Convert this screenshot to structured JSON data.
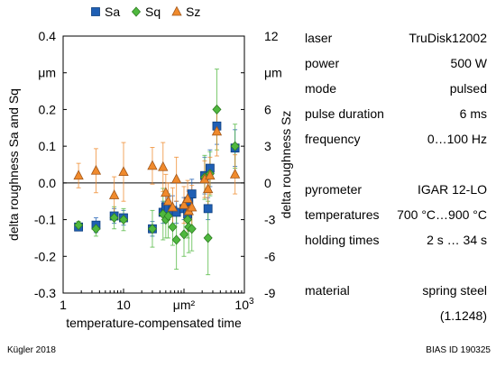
{
  "chart_data": {
    "type": "scatter",
    "x_scale": "log",
    "xlabel": "temperature-compensated time",
    "xlim": [
      1,
      1000
    ],
    "x_tick_labels": [
      "1",
      "10",
      "μm²",
      "10³"
    ],
    "ylabel_left": "delta roughness Sa and Sq",
    "ylim_left": [
      -0.3,
      0.4
    ],
    "y_ticks_left": [
      "0.4",
      "μm",
      "0.2",
      "0.1",
      "0.0",
      "-0.1",
      "-0.2",
      "-0.3"
    ],
    "ylabel_right": "delta roughness Sz",
    "ylim_right": [
      -9,
      12
    ],
    "y_ticks_right": [
      "12",
      "μm",
      "6",
      "3",
      "0",
      "-3",
      "-6",
      "-9"
    ],
    "legend_position": "top",
    "colors": {
      "Sa": "#1f5fb4",
      "Sq": "#4fb83e",
      "Sz": "#f08a2c",
      "Sa_edge": "#0d3f7f",
      "Sq_edge": "#2e7d22",
      "Sz_edge": "#a0561a"
    },
    "series": [
      {
        "name": "Sa",
        "axis": "left",
        "marker": "square",
        "points": [
          {
            "x": 1.8,
            "y": -0.12,
            "err": 0.01
          },
          {
            "x": 3.5,
            "y": -0.115,
            "err": 0.02
          },
          {
            "x": 7,
            "y": -0.09,
            "err": 0.02
          },
          {
            "x": 10,
            "y": -0.095,
            "err": 0.02
          },
          {
            "x": 30,
            "y": -0.125,
            "err": 0.02
          },
          {
            "x": 45,
            "y": -0.08,
            "err": 0.03
          },
          {
            "x": 50,
            "y": -0.065,
            "err": 0.03
          },
          {
            "x": 55,
            "y": -0.07,
            "err": 0.03
          },
          {
            "x": 65,
            "y": -0.075,
            "err": 0.04
          },
          {
            "x": 75,
            "y": -0.08,
            "err": 0.03
          },
          {
            "x": 100,
            "y": -0.07,
            "err": 0.03
          },
          {
            "x": 115,
            "y": -0.085,
            "err": 0.04
          },
          {
            "x": 120,
            "y": -0.05,
            "err": 0.03
          },
          {
            "x": 135,
            "y": -0.03,
            "err": 0.04
          },
          {
            "x": 220,
            "y": 0.02,
            "err": 0.05
          },
          {
            "x": 250,
            "y": -0.07,
            "err": 0.03
          },
          {
            "x": 270,
            "y": 0.04,
            "err": 0.05
          },
          {
            "x": 350,
            "y": 0.155,
            "err": 0.05
          },
          {
            "x": 700,
            "y": 0.095,
            "err": 0.05
          }
        ]
      },
      {
        "name": "Sq",
        "axis": "left",
        "marker": "diamond",
        "points": [
          {
            "x": 1.8,
            "y": -0.115,
            "err": 0.01
          },
          {
            "x": 3.5,
            "y": -0.125,
            "err": 0.02
          },
          {
            "x": 7,
            "y": -0.095,
            "err": 0.03
          },
          {
            "x": 10,
            "y": -0.1,
            "err": 0.03
          },
          {
            "x": 30,
            "y": -0.125,
            "err": 0.05
          },
          {
            "x": 45,
            "y": -0.085,
            "err": 0.07
          },
          {
            "x": 50,
            "y": -0.1,
            "err": 0.05
          },
          {
            "x": 55,
            "y": -0.09,
            "err": 0.06
          },
          {
            "x": 65,
            "y": -0.12,
            "err": 0.05
          },
          {
            "x": 75,
            "y": -0.155,
            "err": 0.08
          },
          {
            "x": 100,
            "y": -0.14,
            "err": 0.06
          },
          {
            "x": 115,
            "y": -0.1,
            "err": 0.05
          },
          {
            "x": 120,
            "y": -0.12,
            "err": 0.07
          },
          {
            "x": 135,
            "y": -0.125,
            "err": 0.06
          },
          {
            "x": 220,
            "y": 0.015,
            "err": 0.06
          },
          {
            "x": 250,
            "y": -0.15,
            "err": 0.1
          },
          {
            "x": 270,
            "y": 0.025,
            "err": 0.06
          },
          {
            "x": 350,
            "y": 0.2,
            "err": 0.11
          },
          {
            "x": 700,
            "y": 0.1,
            "err": 0.06
          }
        ]
      },
      {
        "name": "Sz",
        "axis": "right",
        "marker": "triangle",
        "points": [
          {
            "x": 1.8,
            "y": 0.6,
            "err": 1.0
          },
          {
            "x": 3.5,
            "y": 1.0,
            "err": 1.8
          },
          {
            "x": 7,
            "y": -1.0,
            "err": 1.5
          },
          {
            "x": 10,
            "y": 0.9,
            "err": 2.4
          },
          {
            "x": 30,
            "y": 1.4,
            "err": 1.5
          },
          {
            "x": 45,
            "y": 1.3,
            "err": 2.0
          },
          {
            "x": 50,
            "y": -0.8,
            "err": 1.5
          },
          {
            "x": 55,
            "y": -1.5,
            "err": 1.5
          },
          {
            "x": 65,
            "y": -2.0,
            "err": 1.6
          },
          {
            "x": 75,
            "y": 0.3,
            "err": 1.8
          },
          {
            "x": 100,
            "y": -1.8,
            "err": 1.5
          },
          {
            "x": 115,
            "y": -1.3,
            "err": 1.5
          },
          {
            "x": 120,
            "y": -2.3,
            "err": 1.6
          },
          {
            "x": 135,
            "y": -2.0,
            "err": 1.8
          },
          {
            "x": 220,
            "y": 0.3,
            "err": 1.5
          },
          {
            "x": 250,
            "y": -0.5,
            "err": 1.5
          },
          {
            "x": 270,
            "y": 0.6,
            "err": 1.5
          },
          {
            "x": 350,
            "y": 4.2,
            "err": 2.0
          },
          {
            "x": 700,
            "y": 0.7,
            "err": 1.6
          }
        ]
      }
    ]
  },
  "info": {
    "rows": [
      {
        "key": "laser",
        "value": "TruDisk12002"
      },
      {
        "key": "power",
        "value": "500 W"
      },
      {
        "key": "mode",
        "value": "pulsed"
      },
      {
        "key": "pulse duration",
        "value": "6 ms"
      },
      {
        "key": "frequency",
        "value": "0…100 Hz"
      },
      {
        "key": "",
        "value": ""
      },
      {
        "key": "pyrometer",
        "value": "IGAR 12-LO"
      },
      {
        "key": "temperatures",
        "value": "700 °C…900 °C"
      },
      {
        "key": "holding times",
        "value": "2 s … 34 s"
      },
      {
        "key": "",
        "value": ""
      },
      {
        "key": "material",
        "value": "spring steel"
      },
      {
        "key": "",
        "value": "(1.1248)"
      }
    ]
  },
  "footer": {
    "left": "Kügler 2018",
    "right": "BIAS ID 190325"
  }
}
